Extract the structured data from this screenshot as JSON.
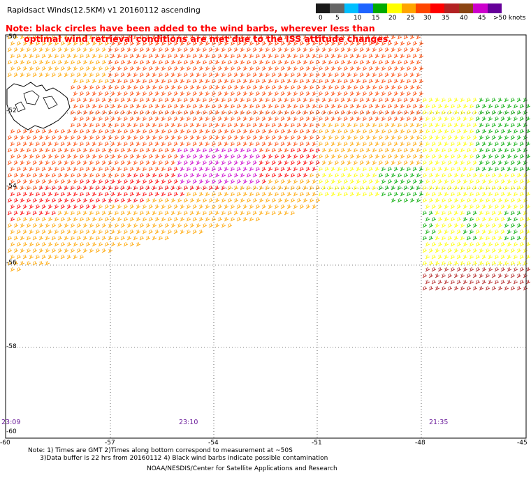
{
  "header": {
    "title": "Rapidsact Winds(12.5KM)  v1  20160112  ascending",
    "note_line1": "Note: black circles have been added to the wind barbs, wherever less than",
    "note_line2": "      optimal wind retrieval conditions are met due to the ISS attitude changes."
  },
  "colorbar": {
    "labels": [
      "0",
      "5",
      "10",
      "15",
      "20",
      "25",
      "30",
      "35",
      "40",
      "45",
      ">50 knots"
    ],
    "colors": [
      "#1a1a1a",
      "#666666",
      "#00bfff",
      "#1e64ff",
      "#00aa00",
      "#ffff00",
      "#ffa500",
      "#ff4500",
      "#ff0000",
      "#b22222",
      "#8b4513",
      "#cc00cc",
      "#660099"
    ]
  },
  "axes": {
    "lat_labels": [
      "-50",
      "-52",
      "-54",
      "-56",
      "-58",
      "-60"
    ],
    "lon_labels": [
      "-60",
      "-57",
      "-54",
      "-51",
      "-48",
      "-45"
    ]
  },
  "times": [
    "23:09",
    "23:10",
    "21:35"
  ],
  "footer": {
    "line1": "Note: 1) Times are GMT 2)Times along bottom correspond to measurement at ~50S",
    "line2": "      3)Data buffer is 22 hrs from 20160112 4) Black wind barbs indicate possible contamination",
    "credit": "NOAA/NESDIS/Center for Satellite Applications and Research"
  }
}
